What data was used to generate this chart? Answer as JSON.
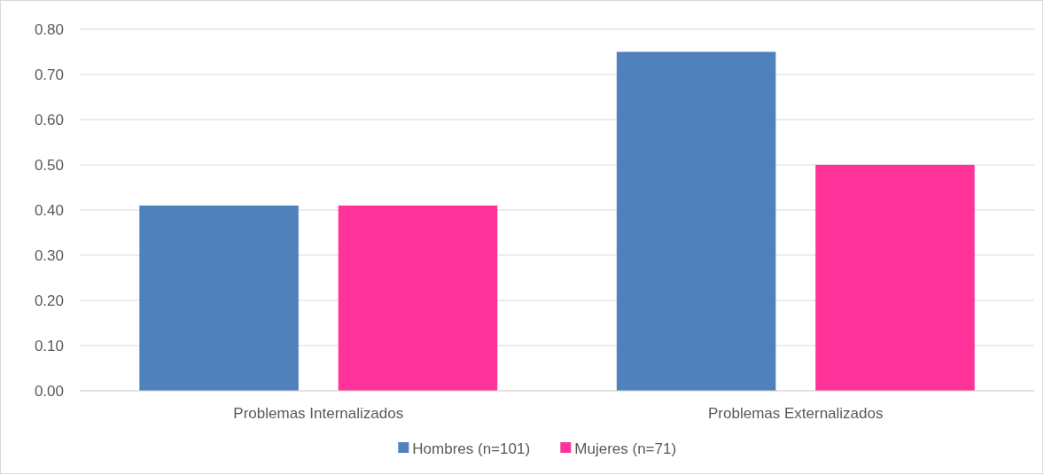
{
  "chart_data": {
    "type": "bar",
    "categories": [
      "Problemas Internalizados",
      "Problemas Externalizados"
    ],
    "series": [
      {
        "name": "Hombres (n=101)",
        "color": "#4f81bd",
        "values": [
          0.41,
          0.75
        ]
      },
      {
        "name": "Mujeres (n=71)",
        "color": "#ff3399",
        "values": [
          0.41,
          0.5
        ]
      }
    ],
    "ylim": [
      0,
      0.8
    ],
    "yticks": [
      {
        "value": 0,
        "label": "0.00"
      },
      {
        "value": 0.1,
        "label": "0.10"
      },
      {
        "value": 0.2,
        "label": "0.20"
      },
      {
        "value": 0.3,
        "label": "0.30"
      },
      {
        "value": 0.4,
        "label": "0.40"
      },
      {
        "value": 0.5,
        "label": "0.50"
      },
      {
        "value": 0.6,
        "label": "0.60"
      },
      {
        "value": 0.7,
        "label": "0.70"
      },
      {
        "value": 0.8,
        "label": "0.80"
      }
    ],
    "grid": "y",
    "legend": "bottom"
  }
}
